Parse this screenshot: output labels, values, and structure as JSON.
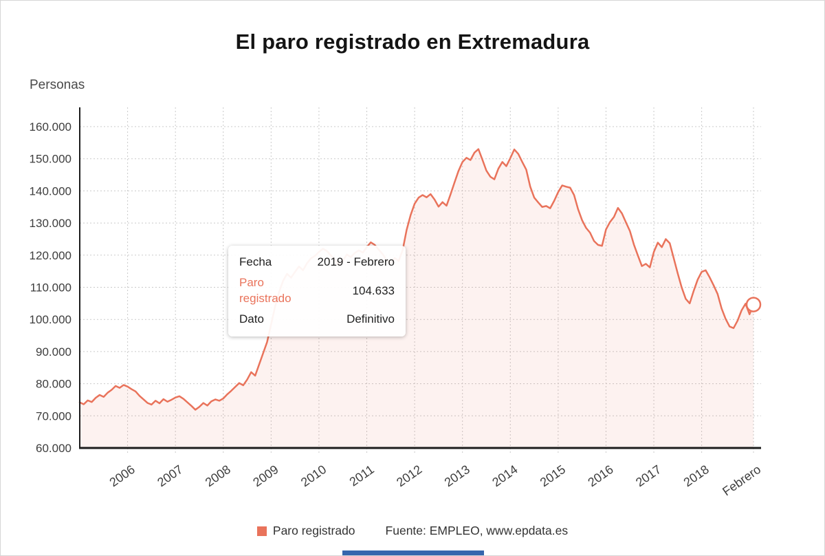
{
  "title": "El paro registrado en Extremadura",
  "y_axis_label": "Personas",
  "tooltip": {
    "rows": [
      {
        "label": "Fecha",
        "value": "2019 - Febrero"
      },
      {
        "label": "Paro registrado",
        "value": "104.633"
      },
      {
        "label": "Dato",
        "value": "Definitivo"
      }
    ]
  },
  "legend": {
    "series_label": "Paro registrado",
    "source": "Fuente: EMPLEO, www.epdata.es"
  },
  "colors": {
    "accent": "#e9735b",
    "area_fill": "rgba(235,115,90,0.09)",
    "grid": "#c9c9c9",
    "axis": "#1c1c1c",
    "brand_bar": "#3566ad"
  },
  "chart_data": {
    "type": "line",
    "title": "El paro registrado en Extremadura",
    "ylabel": "Personas",
    "x_start": "2005-01",
    "x_end": "2019-02",
    "ylim": [
      60000,
      166000
    ],
    "grid": "dotted",
    "y_ticks": [
      {
        "value": 60000,
        "label": "60.000"
      },
      {
        "value": 70000,
        "label": "70.000"
      },
      {
        "value": 80000,
        "label": "80.000"
      },
      {
        "value": 90000,
        "label": "90.000"
      },
      {
        "value": 100000,
        "label": "100.000"
      },
      {
        "value": 110000,
        "label": "110.000"
      },
      {
        "value": 120000,
        "label": "120.000"
      },
      {
        "value": 130000,
        "label": "130.000"
      },
      {
        "value": 140000,
        "label": "140.000"
      },
      {
        "value": 150000,
        "label": "150.000"
      },
      {
        "value": 160000,
        "label": "160.000"
      }
    ],
    "x_ticks": [
      {
        "label": "2006",
        "month_index": 12
      },
      {
        "label": "2007",
        "month_index": 24
      },
      {
        "label": "2008",
        "month_index": 36
      },
      {
        "label": "2009",
        "month_index": 48
      },
      {
        "label": "2010",
        "month_index": 60
      },
      {
        "label": "2011",
        "month_index": 72
      },
      {
        "label": "2012",
        "month_index": 84
      },
      {
        "label": "2013",
        "month_index": 96
      },
      {
        "label": "2014",
        "month_index": 108
      },
      {
        "label": "2015",
        "month_index": 120
      },
      {
        "label": "2016",
        "month_index": 132
      },
      {
        "label": "2017",
        "month_index": 144
      },
      {
        "label": "2018",
        "month_index": 156
      },
      {
        "label": "Febrero",
        "month_index": 169
      }
    ],
    "highlighted_point": {
      "x_label": "2019 - Febrero",
      "value": 104633,
      "status": "Definitivo"
    },
    "series": [
      {
        "name": "Paro registrado",
        "monthly_values": [
          74200,
          73600,
          74800,
          74300,
          75600,
          76500,
          75900,
          77200,
          78100,
          79300,
          78700,
          79600,
          79100,
          78300,
          77600,
          76200,
          75100,
          74000,
          73500,
          74700,
          73900,
          75200,
          74400,
          75000,
          75700,
          76100,
          75300,
          74200,
          73100,
          71900,
          72800,
          74000,
          73200,
          74500,
          75100,
          74700,
          75400,
          76700,
          77800,
          79000,
          80200,
          79500,
          81300,
          83600,
          82500,
          86000,
          89500,
          93000,
          98500,
          104000,
          108500,
          112000,
          114200,
          113000,
          114800,
          116500,
          115300,
          117500,
          119000,
          119800,
          121000,
          122000,
          121300,
          119900,
          118500,
          117000,
          118300,
          120200,
          119400,
          120700,
          121500,
          120800,
          122500,
          124000,
          123200,
          121700,
          120300,
          118400,
          117600,
          119100,
          118200,
          121600,
          127900,
          132500,
          136000,
          137900,
          138700,
          138000,
          139000,
          137300,
          135100,
          136500,
          135400,
          138900,
          142600,
          146200,
          149000,
          150300,
          149600,
          151900,
          153000,
          149700,
          146300,
          144400,
          143600,
          146900,
          149000,
          147700,
          150200,
          152900,
          151500,
          149000,
          146600,
          141300,
          137900,
          136400,
          135000,
          135300,
          134600,
          136900,
          139600,
          141700,
          141300,
          141000,
          138700,
          134300,
          130900,
          128500,
          127000,
          124400,
          123200,
          122900,
          128000,
          130300,
          131900,
          134700,
          133000,
          130200,
          127500,
          123300,
          119900,
          116600,
          117300,
          116200,
          121000,
          123900,
          122500,
          125000,
          123700,
          119000,
          114300,
          109900,
          106400,
          105000,
          108900,
          112400,
          114800,
          115300,
          113100,
          110600,
          107900,
          103400,
          100200,
          97800,
          97300,
          99600,
          102800,
          104900,
          101600,
          104633
        ]
      }
    ]
  }
}
